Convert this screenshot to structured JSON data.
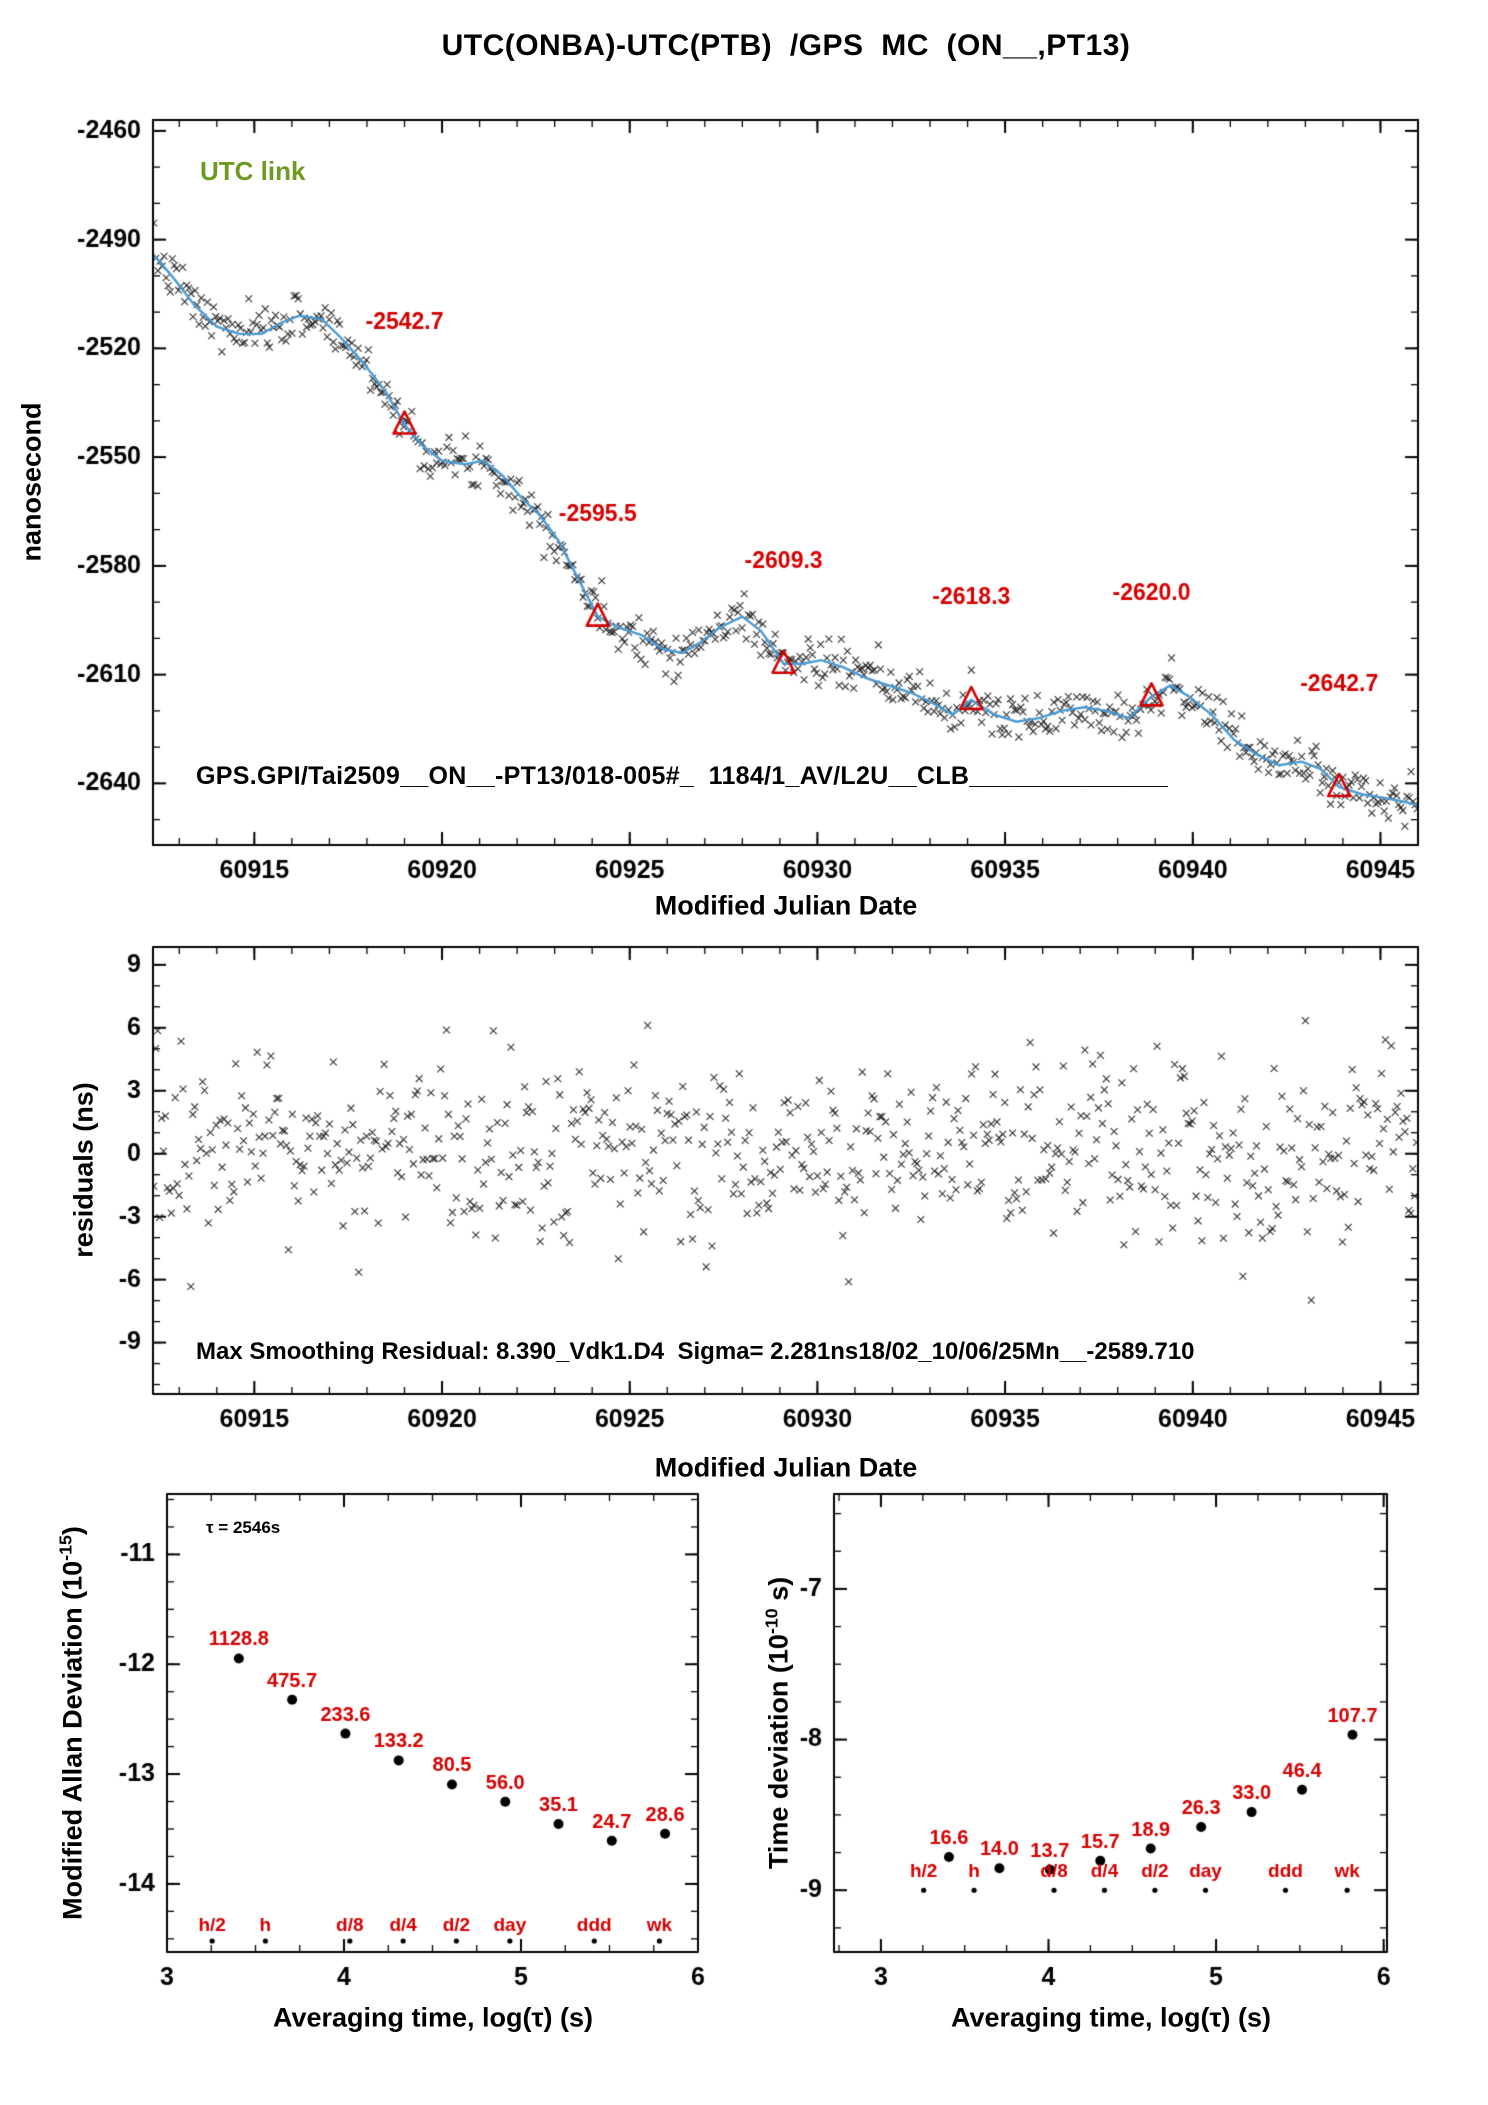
{
  "page": {
    "title": "UTC(ONBA)-UTC(PTB)  /GPS  MC  (ON__,PT13)"
  },
  "colors": {
    "accent_red": "#d40000",
    "trend_blue": "#4a9bd5",
    "utc_link_green": "#6f9a22",
    "marker_black": "#1b1b1b"
  },
  "chart_data": [
    {
      "id": "utc-comparison",
      "type": "scatter",
      "title": "UTC(ONBA)-UTC(PTB)  /GPS  MC  (ON__,PT13)",
      "xlabel": "Modified Julian Date",
      "ylabel": "nanosecond",
      "xlim": [
        60912.3,
        60946.0
      ],
      "ylim": [
        -2657,
        -2457
      ],
      "xticks": [
        60915,
        60920,
        60925,
        60930,
        60935,
        60940,
        60945
      ],
      "yticks": [
        -2640,
        -2610,
        -2580,
        -2550,
        -2520,
        -2490,
        -2460
      ],
      "grid": false,
      "utc_link_label": "UTC link",
      "file_label": "GPS.GPI/Tai2509__ON__-PT13/018-005#_  1184/1_AV/L2U__CLB______________",
      "trend": [
        [
          60912.3,
          -2494
        ],
        [
          60912.8,
          -2500
        ],
        [
          60913.4,
          -2508
        ],
        [
          60914.0,
          -2514
        ],
        [
          60914.6,
          -2516
        ],
        [
          60915.2,
          -2516
        ],
        [
          60915.7,
          -2513
        ],
        [
          60916.2,
          -2511
        ],
        [
          60916.8,
          -2512
        ],
        [
          60917.3,
          -2517
        ],
        [
          60917.9,
          -2524
        ],
        [
          60918.5,
          -2532
        ],
        [
          60919.0,
          -2541
        ],
        [
          60919.5,
          -2547
        ],
        [
          60920.0,
          -2551
        ],
        [
          60920.6,
          -2552
        ],
        [
          60921.1,
          -2551
        ],
        [
          60921.6,
          -2555
        ],
        [
          60922.1,
          -2561
        ],
        [
          60922.6,
          -2566
        ],
        [
          60923.1,
          -2573
        ],
        [
          60923.6,
          -2583
        ],
        [
          60924.15,
          -2594
        ],
        [
          60924.7,
          -2597
        ],
        [
          60925.3,
          -2599
        ],
        [
          60925.9,
          -2603
        ],
        [
          60926.4,
          -2604
        ],
        [
          60926.9,
          -2601
        ],
        [
          60927.4,
          -2597
        ],
        [
          60928.0,
          -2594
        ],
        [
          60928.5,
          -2598
        ],
        [
          60929.1,
          -2607
        ],
        [
          60929.6,
          -2607
        ],
        [
          60930.1,
          -2606
        ],
        [
          60930.7,
          -2608
        ],
        [
          60931.3,
          -2611
        ],
        [
          60931.9,
          -2613
        ],
        [
          60932.5,
          -2615
        ],
        [
          60933.1,
          -2618
        ],
        [
          60933.6,
          -2621
        ],
        [
          60934.1,
          -2617
        ],
        [
          60934.7,
          -2621
        ],
        [
          60935.3,
          -2623
        ],
        [
          60935.9,
          -2622
        ],
        [
          60936.5,
          -2620
        ],
        [
          60937.1,
          -2619
        ],
        [
          60937.7,
          -2620
        ],
        [
          60938.3,
          -2622
        ],
        [
          60938.9,
          -2616
        ],
        [
          60939.4,
          -2613
        ],
        [
          60939.9,
          -2616
        ],
        [
          60940.5,
          -2621
        ],
        [
          60941.1,
          -2628
        ],
        [
          60941.7,
          -2632
        ],
        [
          60942.3,
          -2635
        ],
        [
          60942.9,
          -2634
        ],
        [
          60943.4,
          -2636
        ],
        [
          60943.9,
          -2641
        ],
        [
          60944.5,
          -2643
        ],
        [
          60945.1,
          -2644
        ],
        [
          60945.6,
          -2645
        ],
        [
          60946.0,
          -2646
        ]
      ],
      "scatter": {
        "step": 0.055,
        "sigma": 3.2
      },
      "triangles": [
        {
          "x": 60919.0,
          "y": -2541,
          "label": "-2542.7"
        },
        {
          "x": 60924.15,
          "y": -2594,
          "label": "-2595.5"
        },
        {
          "x": 60929.1,
          "y": -2607,
          "label": "-2609.3"
        },
        {
          "x": 60934.1,
          "y": -2617,
          "label": "-2618.3"
        },
        {
          "x": 60938.9,
          "y": -2616,
          "label": "-2620.0"
        },
        {
          "x": 60943.9,
          "y": -2641,
          "label": "-2642.7"
        }
      ]
    },
    {
      "id": "residuals",
      "type": "scatter",
      "xlabel": "Modified Julian Date",
      "ylabel": "residuals (ns)",
      "xlim": [
        60912.3,
        60946.0
      ],
      "ylim": [
        -11.45,
        9.85
      ],
      "xticks": [
        60915,
        60920,
        60925,
        60930,
        60935,
        60940,
        60945
      ],
      "yticks": [
        -9,
        -6,
        -3,
        0,
        3,
        6,
        9
      ],
      "grid": false,
      "stats_label": "Max Smoothing Residual: 8.390_Vdk1.D4  Sigma= 2.281ns18/02_10/06/25Mn__-2589.710",
      "sigma_ns": 2.281,
      "max_smoothing_residual": 8.39,
      "scatter": {
        "step": 0.052,
        "sigma": 2.281,
        "clip": 8.39
      }
    },
    {
      "id": "modified-allan-deviation",
      "type": "scatter",
      "xlabel": "Averaging time, log(τ) (s)",
      "ylabel_prefix": "Modified Allan Deviation (10",
      "ylabel_sup": "-15",
      "ylabel_suffix": ")",
      "xlim": [
        3,
        6
      ],
      "ylim": [
        -14.62,
        -10.45
      ],
      "xticks": [
        3,
        4,
        5,
        6
      ],
      "yticks": [
        -11,
        -12,
        -13,
        -14
      ],
      "grid": false,
      "tau_note": "τ = 2546s",
      "unit_exponent": -15,
      "points": [
        {
          "log_tau": 3.406,
          "value": 1128.8,
          "label": "1128.8"
        },
        {
          "log_tau": 3.707,
          "value": 475.7,
          "label": "475.7"
        },
        {
          "log_tau": 4.008,
          "value": 233.6,
          "label": "233.6"
        },
        {
          "log_tau": 4.309,
          "value": 133.2,
          "label": "133.2"
        },
        {
          "log_tau": 4.61,
          "value": 80.5,
          "label": "80.5"
        },
        {
          "log_tau": 4.911,
          "value": 56.0,
          "label": "56.0"
        },
        {
          "log_tau": 5.212,
          "value": 35.1,
          "label": "35.1"
        },
        {
          "log_tau": 5.513,
          "value": 24.7,
          "label": "24.7"
        },
        {
          "log_tau": 5.814,
          "value": 28.6,
          "label": "28.6"
        }
      ],
      "period_ticks": [
        {
          "label": "h/2",
          "log_tau": 3.255
        },
        {
          "label": "h",
          "log_tau": 3.556
        },
        {
          "label": "d/8",
          "log_tau": 4.033
        },
        {
          "label": "d/4",
          "log_tau": 4.334
        },
        {
          "label": "d/2",
          "log_tau": 4.635
        },
        {
          "label": "day",
          "log_tau": 4.937
        },
        {
          "label": "ddd",
          "log_tau": 5.414
        },
        {
          "label": "wk",
          "log_tau": 5.782
        }
      ],
      "period_label_y": -14.43,
      "period_dot_y": -14.52
    },
    {
      "id": "time-deviation",
      "type": "scatter",
      "xlabel": "Averaging time, log(τ) (s)",
      "ylabel_prefix": "Time deviation (10",
      "ylabel_sup": "-10",
      "ylabel_suffix": " s)",
      "xlim": [
        2.72,
        6.02
      ],
      "ylim": [
        -9.41,
        -6.37
      ],
      "xticks": [
        3,
        4,
        5,
        6
      ],
      "yticks": [
        -7,
        -8,
        -9
      ],
      "grid": false,
      "unit_exponent": -10,
      "points": [
        {
          "log_tau": 3.406,
          "value": 16.6,
          "label": "16.6"
        },
        {
          "log_tau": 3.707,
          "value": 14.0,
          "label": "14.0"
        },
        {
          "log_tau": 4.008,
          "value": 13.7,
          "label": "13.7"
        },
        {
          "log_tau": 4.309,
          "value": 15.7,
          "label": "15.7"
        },
        {
          "log_tau": 4.61,
          "value": 18.9,
          "label": "18.9"
        },
        {
          "log_tau": 4.911,
          "value": 26.3,
          "label": "26.3"
        },
        {
          "log_tau": 5.212,
          "value": 33.0,
          "label": "33.0"
        },
        {
          "log_tau": 5.513,
          "value": 46.4,
          "label": "46.4"
        },
        {
          "log_tau": 5.814,
          "value": 107.7,
          "label": "107.7"
        }
      ],
      "period_ticks": [
        {
          "label": "h/2",
          "log_tau": 3.255
        },
        {
          "label": "h",
          "log_tau": 3.556
        },
        {
          "label": "d/8",
          "log_tau": 4.033
        },
        {
          "label": "d/4",
          "log_tau": 4.334
        },
        {
          "label": "d/2",
          "log_tau": 4.635
        },
        {
          "label": "day",
          "log_tau": 4.937
        },
        {
          "label": "ddd",
          "log_tau": 5.414
        },
        {
          "label": "wk",
          "log_tau": 5.782
        }
      ],
      "period_label_y": -8.91,
      "period_dot_y": -9.0
    }
  ]
}
